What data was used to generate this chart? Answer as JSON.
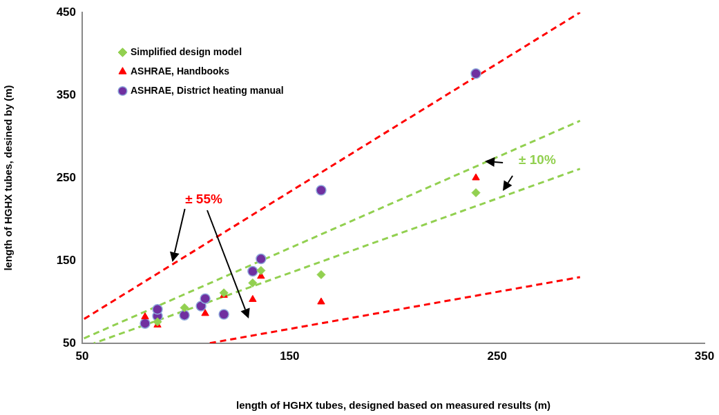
{
  "chart_data": {
    "type": "scatter",
    "xlabel": "length of HGHX tubes, designed based on measured results (m)",
    "ylabel": "length of HGHX tubes, desined by (m)",
    "xlim": [
      50,
      350
    ],
    "xticks": [
      50,
      150,
      250,
      350
    ],
    "ylim": [
      50,
      450
    ],
    "yticks": [
      50,
      150,
      250,
      350,
      450
    ],
    "grid": false,
    "legend": "top left",
    "series": [
      {
        "name": "Simplified design model",
        "color": "#92d050",
        "marker": "diamond",
        "x": [
          86.3,
          99.3,
          118.3,
          132.2,
          136.2,
          165.2,
          239.8
        ],
        "values": [
          76,
          93,
          111,
          123,
          138,
          133,
          232
        ]
      },
      {
        "name": "ASHRAE, Handbooks",
        "color": "#ff0000",
        "marker": "triangle",
        "x": [
          80.3,
          86.3,
          109.3,
          118.3,
          132.2,
          136.2,
          165.2,
          239.8
        ],
        "values": [
          82,
          72,
          86,
          108,
          103,
          131,
          100,
          250
        ]
      },
      {
        "name": "ASHRAE, District heating manual",
        "color": "#7030a0",
        "marker": "circle",
        "x": [
          80.3,
          86.3,
          86.3,
          99.3,
          107.3,
          109.3,
          118.3,
          132.2,
          136.2,
          165.2,
          239.8
        ],
        "values": [
          74,
          83,
          91,
          84,
          95,
          104,
          85,
          137,
          152,
          235,
          376
        ]
      },
      {
        "type": "line",
        "color": "#92d050",
        "line_style": "dashed",
        "marker": "none",
        "x": [
          50,
          290
        ],
        "values": [
          55,
          319
        ]
      },
      {
        "type": "line",
        "color": "#92d050",
        "line_style": "dashed",
        "marker": "none",
        "x": [
          55.6,
          290
        ],
        "values": [
          50,
          261
        ]
      },
      {
        "type": "line",
        "color": "#ff0000",
        "line_style": "dashed",
        "marker": "none",
        "x": [
          50,
          290
        ],
        "values": [
          78,
          450
        ]
      },
      {
        "type": "line",
        "color": "#ff0000",
        "line_style": "dashed",
        "marker": "none",
        "x": [
          111.1,
          290
        ],
        "values": [
          50,
          130
        ]
      }
    ],
    "annotations": [
      "± 55%",
      "± 10%"
    ]
  }
}
